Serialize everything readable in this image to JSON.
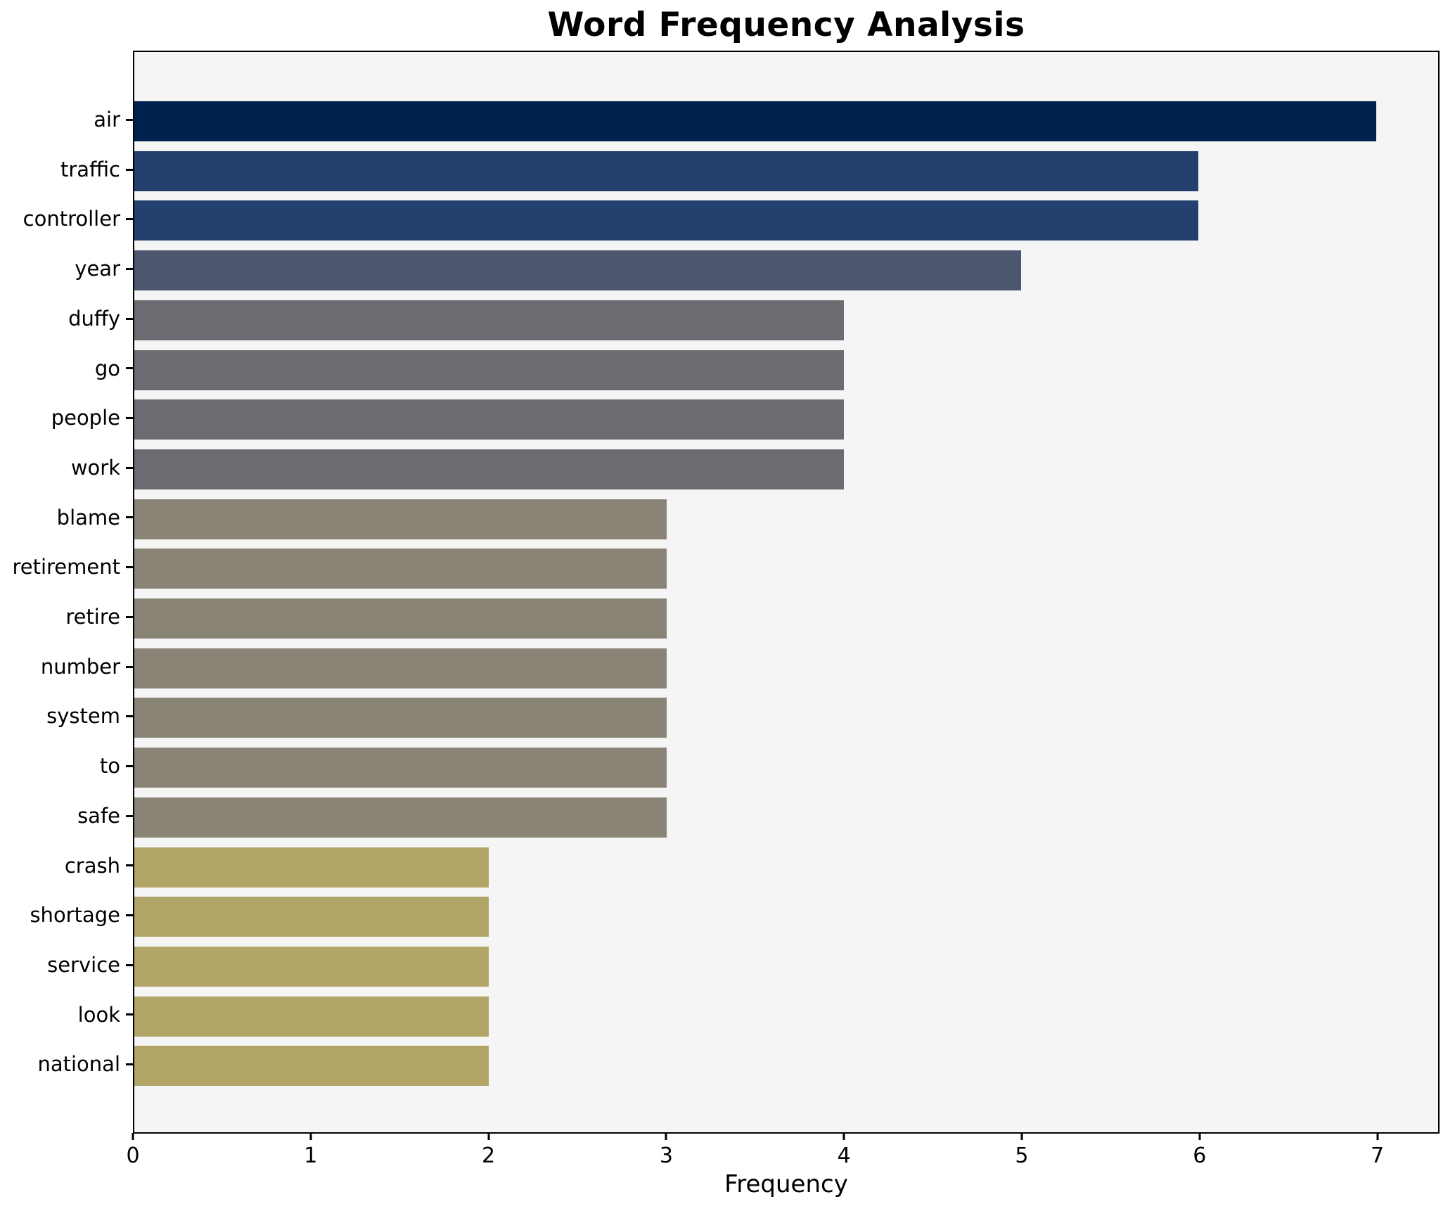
{
  "chart_data": {
    "type": "bar",
    "orientation": "horizontal",
    "title": "Word Frequency Analysis",
    "xlabel": "Frequency",
    "ylabel": "",
    "categories": [
      "air",
      "traffic",
      "controller",
      "year",
      "duffy",
      "go",
      "people",
      "work",
      "blame",
      "retirement",
      "retire",
      "number",
      "system",
      "to",
      "safe",
      "crash",
      "shortage",
      "service",
      "look",
      "national"
    ],
    "values": [
      7,
      6,
      6,
      5,
      4,
      4,
      4,
      4,
      3,
      3,
      3,
      3,
      3,
      3,
      3,
      2,
      2,
      2,
      2,
      2
    ],
    "xlim": [
      0,
      7.35
    ],
    "xticks": [
      "0",
      "1",
      "2",
      "3",
      "4",
      "5",
      "6",
      "7"
    ],
    "grid": "off",
    "legend": "none",
    "value_colors": {
      "7": "#00224e",
      "6": "#24406e",
      "5": "#4d566f",
      "4": "#6b6b71",
      "3": "#8a8477",
      "2": "#b1a667"
    },
    "colors": {
      "figure_background": "#ffffff",
      "plot_background": "#f5f5f5",
      "spine": "#000000",
      "text": "#000000"
    }
  }
}
